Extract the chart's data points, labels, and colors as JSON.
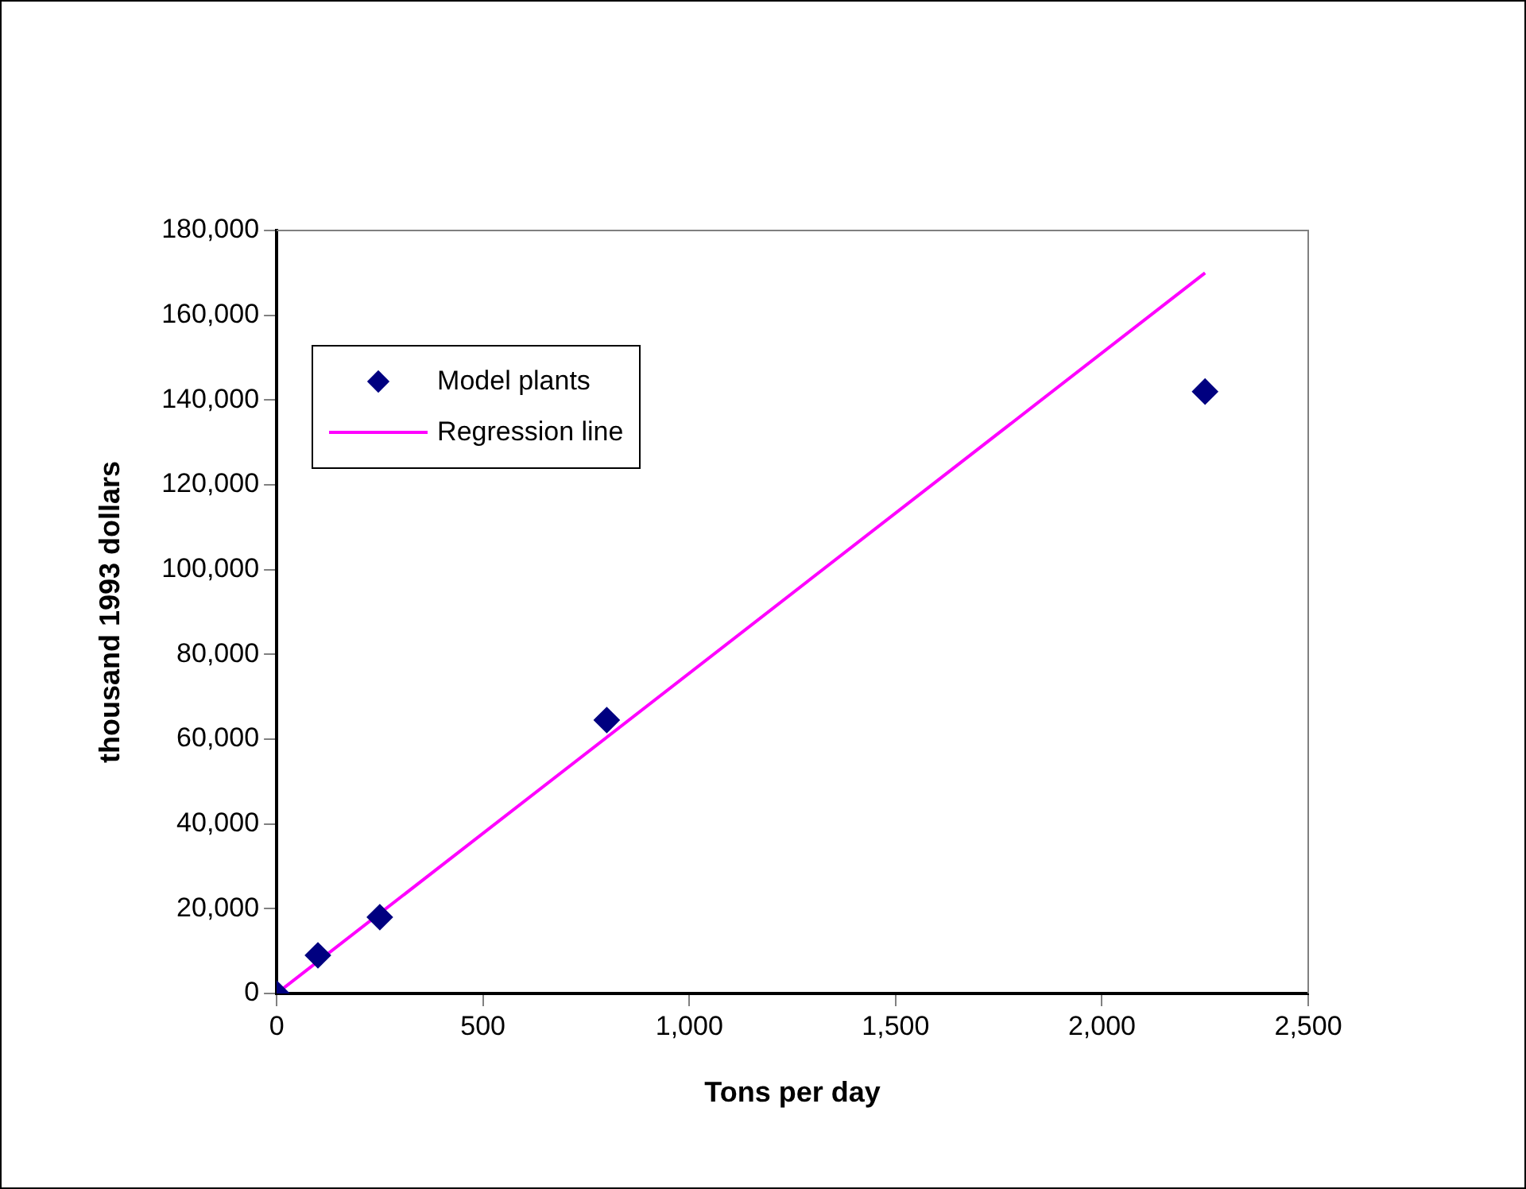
{
  "chart_data": {
    "type": "scatter",
    "xlabel": "Tons per day",
    "ylabel": "thousand 1993 dollars",
    "xlim": [
      0,
      2500
    ],
    "xticks": [
      {
        "value": 0,
        "label": "0"
      },
      {
        "value": 500,
        "label": "500"
      },
      {
        "value": 1000,
        "label": "1,000"
      },
      {
        "value": 1500,
        "label": "1,500"
      },
      {
        "value": 2000,
        "label": "2,000"
      },
      {
        "value": 2500,
        "label": "2,500"
      }
    ],
    "ylim": [
      0,
      180000
    ],
    "yticks": [
      {
        "value": 0,
        "label": "0"
      },
      {
        "value": 20000,
        "label": "20,000"
      },
      {
        "value": 40000,
        "label": "40,000"
      },
      {
        "value": 60000,
        "label": "60,000"
      },
      {
        "value": 80000,
        "label": "80,000"
      },
      {
        "value": 100000,
        "label": "100,000"
      },
      {
        "value": 120000,
        "label": "120,000"
      },
      {
        "value": 140000,
        "label": "140,000"
      },
      {
        "value": 160000,
        "label": "160,000"
      },
      {
        "value": 180000,
        "label": "180,000"
      }
    ],
    "grid": false,
    "legend": "top left",
    "series": [
      {
        "name": "Model plants",
        "color": "#000080",
        "marker": "diamond",
        "x": [
          0,
          100,
          250,
          800,
          2250
        ],
        "values": [
          0,
          9000,
          18000,
          64500,
          142000
        ]
      },
      {
        "name": "Regression line",
        "type": "line",
        "color": "#ff00ff",
        "marker": "none",
        "line_style": "solid",
        "x": [
          0,
          2250
        ],
        "values": [
          0,
          170000
        ]
      }
    ]
  }
}
